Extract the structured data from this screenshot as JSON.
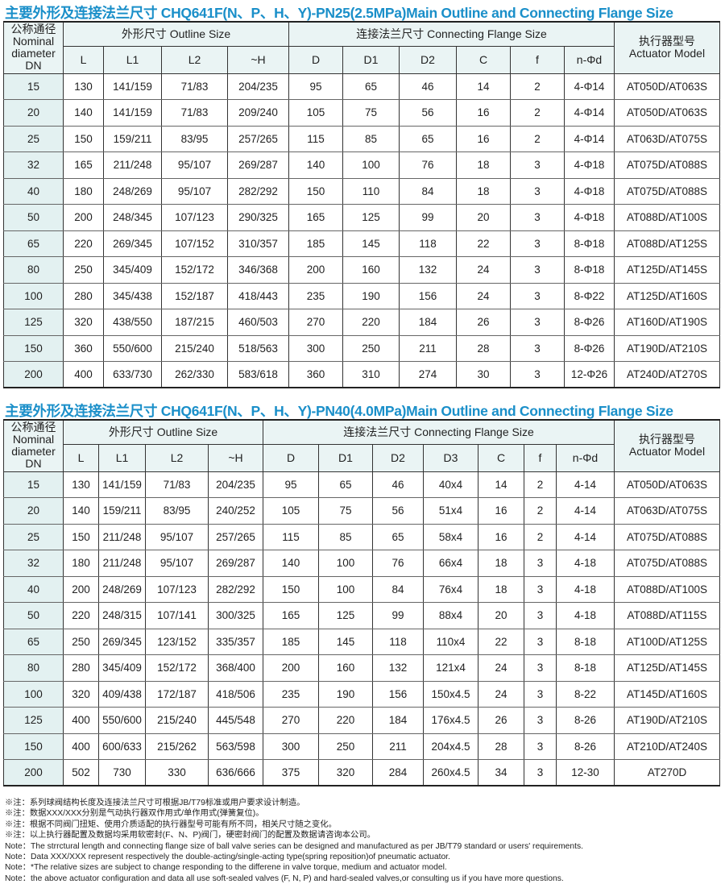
{
  "tables": [
    {
      "title": "主要外形及连接法兰尺寸 CHQ641F(N、P、H、Y)-PN25(2.5MPa)Main Outline and Connecting Flange Size",
      "dn_header": [
        "公称通径",
        "Nominal",
        "diameter",
        "DN"
      ],
      "outline_header": "外形尺寸 Outline Size",
      "flange_header": "连接法兰尺寸 Connecting Flange Size",
      "actuator_header": [
        "执行器型号",
        "Actuator Model"
      ],
      "outline_cols": [
        "L",
        "L1",
        "L2",
        "~H"
      ],
      "flange_cols": [
        "D",
        "D1",
        "D2",
        "C",
        "f",
        "n-Φd"
      ],
      "rows": [
        [
          "15",
          "130",
          "141/159",
          "71/83",
          "204/235",
          "95",
          "65",
          "46",
          "14",
          "2",
          "4-Φ14",
          "AT050D/AT063S"
        ],
        [
          "20",
          "140",
          "141/159",
          "71/83",
          "209/240",
          "105",
          "75",
          "56",
          "16",
          "2",
          "4-Φ14",
          "AT050D/AT063S"
        ],
        [
          "25",
          "150",
          "159/211",
          "83/95",
          "257/265",
          "115",
          "85",
          "65",
          "16",
          "2",
          "4-Φ14",
          "AT063D/AT075S"
        ],
        [
          "32",
          "165",
          "211/248",
          "95/107",
          "269/287",
          "140",
          "100",
          "76",
          "18",
          "3",
          "4-Φ18",
          "AT075D/AT088S"
        ],
        [
          "40",
          "180",
          "248/269",
          "95/107",
          "282/292",
          "150",
          "110",
          "84",
          "18",
          "3",
          "4-Φ18",
          "AT075D/AT088S"
        ],
        [
          "50",
          "200",
          "248/345",
          "107/123",
          "290/325",
          "165",
          "125",
          "99",
          "20",
          "3",
          "4-Φ18",
          "AT088D/AT100S"
        ],
        [
          "65",
          "220",
          "269/345",
          "107/152",
          "310/357",
          "185",
          "145",
          "118",
          "22",
          "3",
          "8-Φ18",
          "AT088D/AT125S"
        ],
        [
          "80",
          "250",
          "345/409",
          "152/172",
          "346/368",
          "200",
          "160",
          "132",
          "24",
          "3",
          "8-Φ18",
          "AT125D/AT145S"
        ],
        [
          "100",
          "280",
          "345/438",
          "152/187",
          "418/443",
          "235",
          "190",
          "156",
          "24",
          "3",
          "8-Φ22",
          "AT125D/AT160S"
        ],
        [
          "125",
          "320",
          "438/550",
          "187/215",
          "460/503",
          "270",
          "220",
          "184",
          "26",
          "3",
          "8-Φ26",
          "AT160D/AT190S"
        ],
        [
          "150",
          "360",
          "550/600",
          "215/240",
          "518/563",
          "300",
          "250",
          "211",
          "28",
          "3",
          "8-Φ26",
          "AT190D/AT210S"
        ],
        [
          "200",
          "400",
          "633/730",
          "262/330",
          "583/618",
          "360",
          "310",
          "274",
          "30",
          "3",
          "12-Φ26",
          "AT240D/AT270S"
        ]
      ]
    },
    {
      "title": "主要外形及连接法兰尺寸 CHQ641F(N、P、H、Y)-PN40(4.0MPa)Main Outline and Connecting Flange Size",
      "dn_header": [
        "公称通径",
        "Nominal",
        "diameter",
        "DN"
      ],
      "outline_header": "外形尺寸 Outline Size",
      "flange_header": "连接法兰尺寸 Connecting Flange Size",
      "actuator_header": [
        "执行器型号",
        "Actuator Model"
      ],
      "outline_cols": [
        "L",
        "L1",
        "L2",
        "~H"
      ],
      "flange_cols": [
        "D",
        "D1",
        "D2",
        "D3",
        "C",
        "f",
        "n-Φd"
      ],
      "rows": [
        [
          "15",
          "130",
          "141/159",
          "71/83",
          "204/235",
          "95",
          "65",
          "46",
          "40x4",
          "14",
          "2",
          "4-14",
          "AT050D/AT063S"
        ],
        [
          "20",
          "140",
          "159/211",
          "83/95",
          "240/252",
          "105",
          "75",
          "56",
          "51x4",
          "16",
          "2",
          "4-14",
          "AT063D/AT075S"
        ],
        [
          "25",
          "150",
          "211/248",
          "95/107",
          "257/265",
          "115",
          "85",
          "65",
          "58x4",
          "16",
          "2",
          "4-14",
          "AT075D/AT088S"
        ],
        [
          "32",
          "180",
          "211/248",
          "95/107",
          "269/287",
          "140",
          "100",
          "76",
          "66x4",
          "18",
          "3",
          "4-18",
          "AT075D/AT088S"
        ],
        [
          "40",
          "200",
          "248/269",
          "107/123",
          "282/292",
          "150",
          "100",
          "84",
          "76x4",
          "18",
          "3",
          "4-18",
          "AT088D/AT100S"
        ],
        [
          "50",
          "220",
          "248/315",
          "107/141",
          "300/325",
          "165",
          "125",
          "99",
          "88x4",
          "20",
          "3",
          "4-18",
          "AT088D/AT115S"
        ],
        [
          "65",
          "250",
          "269/345",
          "123/152",
          "335/357",
          "185",
          "145",
          "118",
          "110x4",
          "22",
          "3",
          "8-18",
          "AT100D/AT125S"
        ],
        [
          "80",
          "280",
          "345/409",
          "152/172",
          "368/400",
          "200",
          "160",
          "132",
          "121x4",
          "24",
          "3",
          "8-18",
          "AT125D/AT145S"
        ],
        [
          "100",
          "320",
          "409/438",
          "172/187",
          "418/506",
          "235",
          "190",
          "156",
          "150x4.5",
          "24",
          "3",
          "8-22",
          "AT145D/AT160S"
        ],
        [
          "125",
          "400",
          "550/600",
          "215/240",
          "445/548",
          "270",
          "220",
          "184",
          "176x4.5",
          "26",
          "3",
          "8-26",
          "AT190D/AT210S"
        ],
        [
          "150",
          "400",
          "600/633",
          "215/262",
          "563/598",
          "300",
          "250",
          "211",
          "204x4.5",
          "28",
          "3",
          "8-26",
          "AT210D/AT240S"
        ],
        [
          "200",
          "502",
          "730",
          "330",
          "636/666",
          "375",
          "320",
          "284",
          "260x4.5",
          "34",
          "3",
          "12-30",
          "AT270D"
        ]
      ]
    }
  ],
  "notes": [
    "※注：系列球阀结构长度及连接法兰尺寸可根据JB/T79标准或用户要求设计制造。",
    "※注：数据XXX/XXX分别是气动执行器双作用式/单作用式(弹簧复位)。",
    "※注：根据不同阀门扭矩、使用介质适配的执行器型号可能有所不同，相关尺寸随之变化。",
    "※注：以上执行器配置及数据均采用软密封(F、N、P)阀门，硬密封阀门的配置及数据请咨询本公司。",
    "Note：The strrctural length and connecting flange size of ball valve series can be designed and manufactured as per JB/T79 standard or users' requirements.",
    "Note：Data XXX/XXX represent respectively the double-acting/single-acting type(spring reposition)of pneumatic actuator.",
    "Note：*The relative sizes are subject to change responding to the differene in valve torque, medium and actuator model.",
    "Note：the above actuator  configuration and data  all use soft-sealed valves (F, N, P) and  hard-sealed valves,or consulting us if you have more questions."
  ]
}
